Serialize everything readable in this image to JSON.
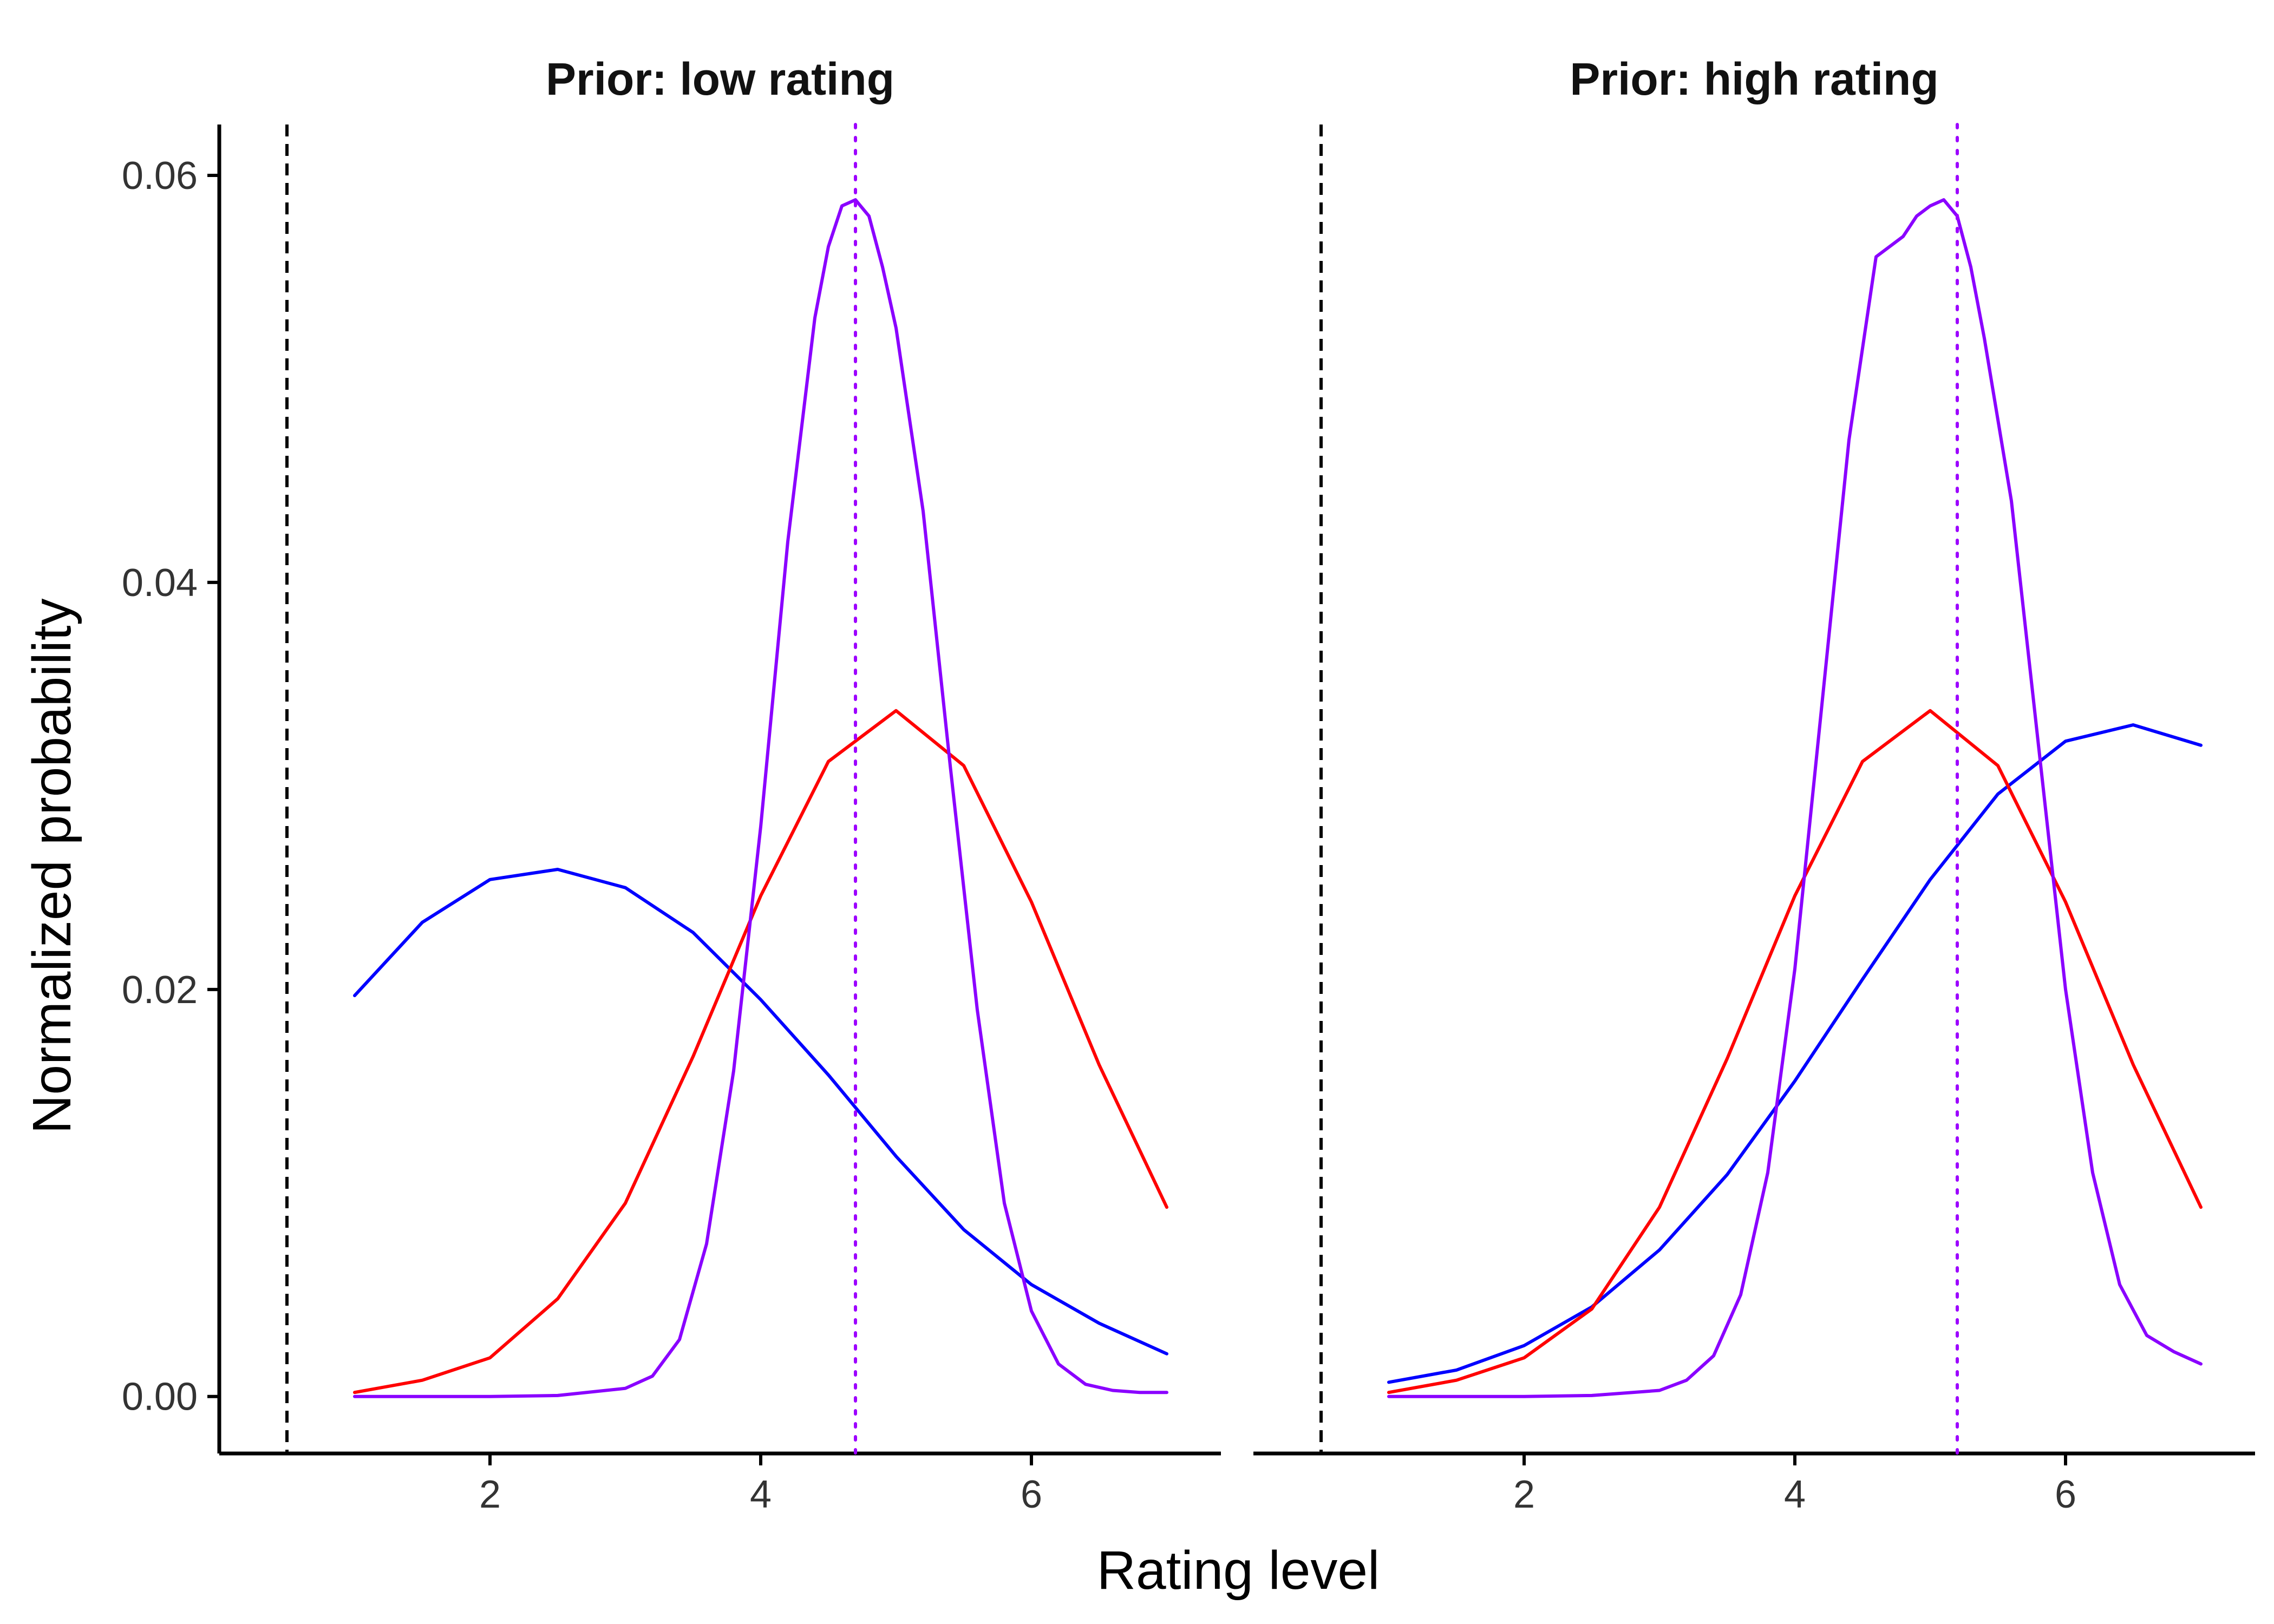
{
  "chart_data": {
    "type": "line",
    "xlabel": "Rating level",
    "ylabel": "Normalized probability",
    "xlim": [
      0.0,
      7.4
    ],
    "ylim": [
      -0.0028,
      0.0625
    ],
    "x_ticks": [
      2,
      4,
      6
    ],
    "y_ticks": [
      0.0,
      0.02,
      0.04,
      0.06
    ],
    "y_tick_labels": [
      "0.00",
      "0.02",
      "0.04",
      "0.06"
    ],
    "grid": false,
    "legend": "none",
    "panels": [
      {
        "title": "Prior: low rating",
        "ref_dashed_x": 0.5,
        "ref_dotted_x": 4.7,
        "ref_dotted_color": "#9d00ff",
        "series": [
          {
            "color": "#0000ff",
            "x": [
              1.0,
              1.5,
              2.0,
              2.5,
              3.0,
              3.5,
              4.0,
              4.5,
              5.0,
              5.5,
              6.0,
              6.5,
              7.0
            ],
            "y": [
              0.0197,
              0.0233,
              0.0254,
              0.0259,
              0.025,
              0.0228,
              0.0195,
              0.0158,
              0.0118,
              0.0082,
              0.0055,
              0.0036,
              0.0021
            ]
          },
          {
            "color": "#ff0000",
            "x": [
              1.0,
              1.5,
              2.0,
              2.5,
              3.0,
              3.5,
              4.0,
              4.5,
              5.0,
              5.5,
              6.0,
              6.5,
              7.0
            ],
            "y": [
              0.0002,
              0.0008,
              0.0019,
              0.0048,
              0.0095,
              0.0167,
              0.0246,
              0.0312,
              0.0337,
              0.031,
              0.0243,
              0.0163,
              0.0093
            ]
          },
          {
            "color": "#8a00ff",
            "x": [
              1.0,
              2.0,
              2.5,
              3.0,
              3.2,
              3.4,
              3.6,
              3.8,
              4.0,
              4.2,
              4.4,
              4.5,
              4.6,
              4.7,
              4.8,
              4.9,
              5.0,
              5.2,
              5.4,
              5.6,
              5.8,
              6.0,
              6.2,
              6.4,
              6.6,
              6.8,
              7.0
            ],
            "y": [
              0.0,
              0.0,
              5e-05,
              0.0004,
              0.001,
              0.0028,
              0.0075,
              0.016,
              0.028,
              0.042,
              0.053,
              0.0565,
              0.0585,
              0.0588,
              0.058,
              0.0555,
              0.0525,
              0.0435,
              0.031,
              0.019,
              0.0095,
              0.0042,
              0.0016,
              0.0006,
              0.0003,
              0.0002,
              0.0002
            ]
          }
        ]
      },
      {
        "title": "Prior: high rating",
        "ref_dashed_x": 0.5,
        "ref_dotted_x": 5.2,
        "ref_dotted_color": "#9d00ff",
        "series": [
          {
            "color": "#0000ff",
            "x": [
              1.0,
              1.5,
              2.0,
              2.5,
              3.0,
              3.5,
              4.0,
              4.5,
              5.0,
              5.5,
              6.0,
              6.5,
              7.0
            ],
            "y": [
              0.0007,
              0.0013,
              0.0025,
              0.0044,
              0.0072,
              0.0109,
              0.0155,
              0.0205,
              0.0254,
              0.0296,
              0.0322,
              0.033,
              0.032
            ]
          },
          {
            "color": "#ff0000",
            "x": [
              1.0,
              1.5,
              2.0,
              2.5,
              3.0,
              3.5,
              4.0,
              4.5,
              5.0,
              5.5,
              6.0,
              6.5,
              7.0
            ],
            "y": [
              0.0002,
              0.0008,
              0.0019,
              0.0043,
              0.0093,
              0.0166,
              0.0246,
              0.0312,
              0.0337,
              0.031,
              0.0243,
              0.0163,
              0.0093
            ]
          },
          {
            "color": "#8a00ff",
            "x": [
              1.0,
              2.0,
              2.5,
              3.0,
              3.2,
              3.4,
              3.6,
              3.8,
              4.0,
              4.2,
              4.4,
              4.6,
              4.8,
              4.9,
              5.0,
              5.1,
              5.2,
              5.3,
              5.4,
              5.6,
              5.8,
              6.0,
              6.2,
              6.4,
              6.6,
              6.8,
              7.0
            ],
            "y": [
              0.0,
              0.0,
              5e-05,
              0.0003,
              0.0008,
              0.002,
              0.005,
              0.011,
              0.021,
              0.034,
              0.047,
              0.056,
              0.057,
              0.058,
              0.0585,
              0.0588,
              0.058,
              0.0555,
              0.052,
              0.044,
              0.032,
              0.02,
              0.011,
              0.0055,
              0.003,
              0.0022,
              0.0016
            ]
          }
        ]
      }
    ]
  }
}
